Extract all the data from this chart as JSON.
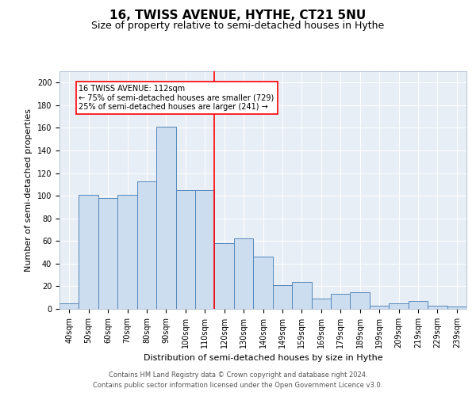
{
  "title": "16, TWISS AVENUE, HYTHE, CT21 5NU",
  "subtitle": "Size of property relative to semi-detached houses in Hythe",
  "xlabel": "Distribution of semi-detached houses by size in Hythe",
  "ylabel": "Number of semi-detached properties",
  "footer_line1": "Contains HM Land Registry data © Crown copyright and database right 2024.",
  "footer_line2": "Contains public sector information licensed under the Open Government Licence v3.0.",
  "categories": [
    "40sqm",
    "50sqm",
    "60sqm",
    "70sqm",
    "80sqm",
    "90sqm",
    "100sqm",
    "110sqm",
    "120sqm",
    "130sqm",
    "140sqm",
    "149sqm",
    "159sqm",
    "169sqm",
    "179sqm",
    "189sqm",
    "199sqm",
    "209sqm",
    "219sqm",
    "229sqm",
    "239sqm"
  ],
  "values": [
    5,
    101,
    98,
    101,
    113,
    161,
    105,
    105,
    58,
    62,
    46,
    21,
    24,
    9,
    13,
    15,
    3,
    5,
    7,
    3,
    2
  ],
  "bar_color": "#ccddf0",
  "bar_edge_color": "#5588bb",
  "vline_color": "red",
  "annotation_text_line1": "16 TWISS AVENUE: 112sqm",
  "annotation_text_line2": "← 75% of semi-detached houses are smaller (729)",
  "annotation_text_line3": "25% of semi-detached houses are larger (241) →",
  "ylim": [
    0,
    210
  ],
  "yticks": [
    0,
    20,
    40,
    60,
    80,
    100,
    120,
    140,
    160,
    180,
    200
  ],
  "bg_color": "#e8eef5",
  "title_fontsize": 11,
  "subtitle_fontsize": 9,
  "axis_label_fontsize": 8,
  "tick_fontsize": 7,
  "annotation_fontsize": 7,
  "footer_fontsize": 6
}
